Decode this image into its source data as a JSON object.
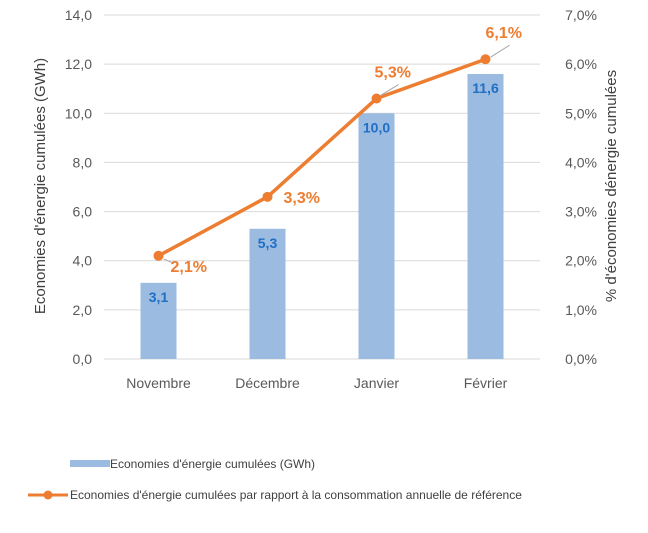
{
  "chart_data": {
    "type": "bar",
    "categories": [
      "Novembre",
      "Décembre",
      "Janvier",
      "Février"
    ],
    "series": [
      {
        "name": "Economies d'énergie cumulées (GWh)",
        "type": "bar",
        "axis": "left",
        "values": [
          3.1,
          5.3,
          10.0,
          11.6
        ],
        "labels": [
          "3,1",
          "5,3",
          "10,0",
          "11,6"
        ]
      },
      {
        "name": "Economies d'énergie cumulées par rapport à la consommation annuelle de référence",
        "type": "line",
        "axis": "right",
        "values": [
          2.1,
          3.3,
          5.3,
          6.1
        ],
        "labels": [
          "2,1%",
          "3,3%",
          "5,3%",
          "6,1%"
        ]
      }
    ],
    "ylabel": "Economies d'énergie cumulées (GWh)",
    "ylabel_right": "% d'économies dénergie cumulées",
    "ylim": [
      0,
      14
    ],
    "ylim_right": [
      0,
      7
    ],
    "yticks": [
      "0,0",
      "2,0",
      "4,0",
      "6,0",
      "8,0",
      "10,0",
      "12,0",
      "14,0"
    ],
    "yticks_right": [
      "0,0%",
      "1,0%",
      "2,0%",
      "3,0%",
      "4,0%",
      "5,0%",
      "6,0%",
      "7,0%"
    ],
    "grid": true,
    "legend_position": "bottom-left"
  },
  "colors": {
    "bar": "#9bbbe0",
    "line": "#ed7d31",
    "bar_label": "#1f6fc5",
    "line_label": "#ed7d31",
    "grid": "#d9d9d9",
    "leader": "#a6a6a6"
  }
}
